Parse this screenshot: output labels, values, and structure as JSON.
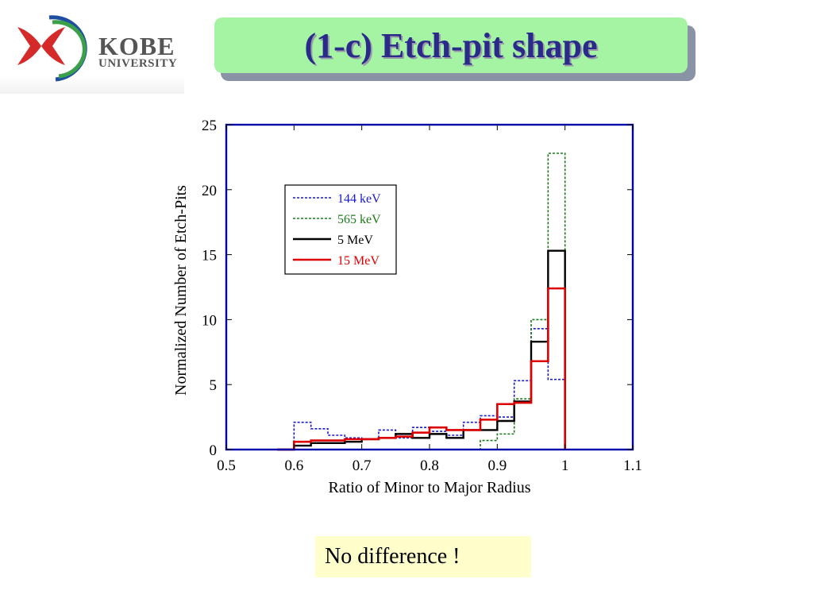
{
  "logo": {
    "name": "KOBE",
    "subtitle": "UNIVERSITY"
  },
  "slide": {
    "title": "(1-c) Etch-pit shape",
    "note": "No difference !"
  },
  "colors": {
    "title_bg": "#a4f4a4",
    "title_text": "#2a2a8a",
    "axes_frame": "#0000aa",
    "note_bg": "#ffffcc"
  },
  "chart_data": {
    "type": "line",
    "style": "step-histogram",
    "xlabel": "Ratio of Minor to Major Radius",
    "ylabel": "Normalized Number of Etch-Pits",
    "xlim": [
      0.5,
      1.1
    ],
    "ylim": [
      0,
      25
    ],
    "xticks": [
      "0.5",
      "0.6",
      "0.7",
      "0.8",
      "0.9",
      "1",
      "1.1"
    ],
    "yticks": [
      "0",
      "5",
      "10",
      "15",
      "20",
      "25"
    ],
    "grid": false,
    "legend_position": "upper-left",
    "bin_edges": [
      0.575,
      0.6,
      0.625,
      0.65,
      0.675,
      0.7,
      0.725,
      0.75,
      0.775,
      0.8,
      0.825,
      0.85,
      0.875,
      0.9,
      0.925,
      0.95,
      0.975,
      1.0
    ],
    "series": [
      {
        "name": "144 keV",
        "color": "#1a1acc",
        "dash": "3,2",
        "width": 1.6,
        "values": [
          0.0,
          2.1,
          1.6,
          1.1,
          0.9,
          0.8,
          1.5,
          0.9,
          1.7,
          1.4,
          1.1,
          2.1,
          2.6,
          2.5,
          5.3,
          9.3,
          5.4
        ]
      },
      {
        "name": "565 keV",
        "color": "#1a7a1a",
        "dash": "3,2",
        "width": 1.6,
        "values": [
          0.0,
          0.0,
          0.0,
          0.0,
          0.0,
          0.0,
          0.0,
          0.0,
          0.0,
          0.0,
          0.0,
          0.0,
          0.7,
          1.2,
          3.9,
          10.0,
          22.8
        ]
      },
      {
        "name": "5 MeV",
        "color": "#000000",
        "dash": "",
        "width": 2.4,
        "values": [
          0.0,
          0.3,
          0.5,
          0.5,
          0.6,
          0.8,
          0.9,
          1.2,
          0.9,
          1.2,
          0.9,
          1.5,
          1.5,
          2.2,
          3.7,
          8.3,
          15.3
        ]
      },
      {
        "name": "15 MeV",
        "color": "#dd0000",
        "dash": "",
        "width": 2.6,
        "values": [
          0.0,
          0.6,
          0.7,
          0.7,
          0.8,
          0.8,
          0.9,
          1.0,
          1.3,
          1.7,
          1.5,
          1.5,
          2.3,
          3.5,
          3.6,
          6.8,
          12.4
        ]
      }
    ]
  }
}
